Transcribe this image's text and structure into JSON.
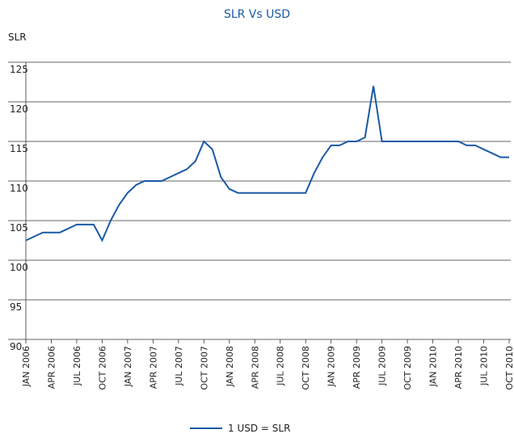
{
  "chart_data": {
    "type": "line",
    "title": "SLR Vs USD",
    "y_label": "SLR",
    "x": [
      "2006-01",
      "2006-02",
      "2006-03",
      "2006-04",
      "2006-05",
      "2006-06",
      "2006-07",
      "2006-08",
      "2006-09",
      "2006-10",
      "2006-11",
      "2006-12",
      "2007-01",
      "2007-02",
      "2007-03",
      "2007-04",
      "2007-05",
      "2007-06",
      "2007-07",
      "2007-08",
      "2007-09",
      "2007-10",
      "2007-11",
      "2007-12",
      "2008-01",
      "2008-02",
      "2008-03",
      "2008-04",
      "2008-05",
      "2008-06",
      "2008-07",
      "2008-08",
      "2008-09",
      "2008-10",
      "2008-11",
      "2008-12",
      "2009-01",
      "2009-02",
      "2009-03",
      "2009-04",
      "2009-05",
      "2009-06",
      "2009-07",
      "2009-08",
      "2009-09",
      "2009-10",
      "2009-11",
      "2009-12",
      "2010-01",
      "2010-02",
      "2010-03",
      "2010-04",
      "2010-05",
      "2010-06",
      "2010-07",
      "2010-08",
      "2010-09",
      "2010-10"
    ],
    "series": [
      {
        "name": "1 USD = SLR",
        "color": "#1a5aa6",
        "values": [
          102.5,
          103,
          103.5,
          103.5,
          103.5,
          104,
          104.5,
          104.5,
          104.5,
          102.5,
          105,
          107,
          108.5,
          109.5,
          110,
          110,
          110,
          110.5,
          111,
          111.5,
          112.5,
          115,
          114,
          110.5,
          109,
          108.5,
          108.5,
          108.5,
          108.5,
          108.5,
          108.5,
          108.5,
          108.5,
          108.5,
          111,
          113,
          114.5,
          114.5,
          115,
          115,
          115.5,
          122,
          115,
          115,
          115,
          115,
          115,
          115,
          115,
          115,
          115,
          115,
          114.5,
          114.5,
          114,
          113.5,
          113,
          113
        ]
      }
    ],
    "ylim": [
      90,
      125
    ],
    "yticks": [
      90,
      95,
      100,
      105,
      110,
      115,
      120,
      125
    ],
    "grid": true,
    "xticks": [
      {
        "value": "2006-01",
        "label": "JAN 2006"
      },
      {
        "value": "2006-04",
        "label": "APR 2006"
      },
      {
        "value": "2006-07",
        "label": "JUL 2006"
      },
      {
        "value": "2006-10",
        "label": "OCT 2006"
      },
      {
        "value": "2007-01",
        "label": "JAN 2007"
      },
      {
        "value": "2007-04",
        "label": "APR 2007"
      },
      {
        "value": "2007-07",
        "label": "JUL 2007"
      },
      {
        "value": "2007-10",
        "label": "OCT 2007"
      },
      {
        "value": "2008-01",
        "label": "JAN 2008"
      },
      {
        "value": "2008-04",
        "label": "APR 2008"
      },
      {
        "value": "2008-07",
        "label": "JUL 2008"
      },
      {
        "value": "2008-10",
        "label": "OCT 2008"
      },
      {
        "value": "2009-01",
        "label": "JAN 2009"
      },
      {
        "value": "2009-04",
        "label": "APR 2009"
      },
      {
        "value": "2009-07",
        "label": "JUL 2009"
      },
      {
        "value": "2009-10",
        "label": "OCT 2009"
      },
      {
        "value": "2010-01",
        "label": "JAN 2010"
      },
      {
        "value": "2010-04",
        "label": "APR 2010"
      },
      {
        "value": "2010-07",
        "label": "JUL 2010"
      },
      {
        "value": "2010-10",
        "label": "OCT 2010"
      }
    ],
    "legend": "bottom"
  }
}
